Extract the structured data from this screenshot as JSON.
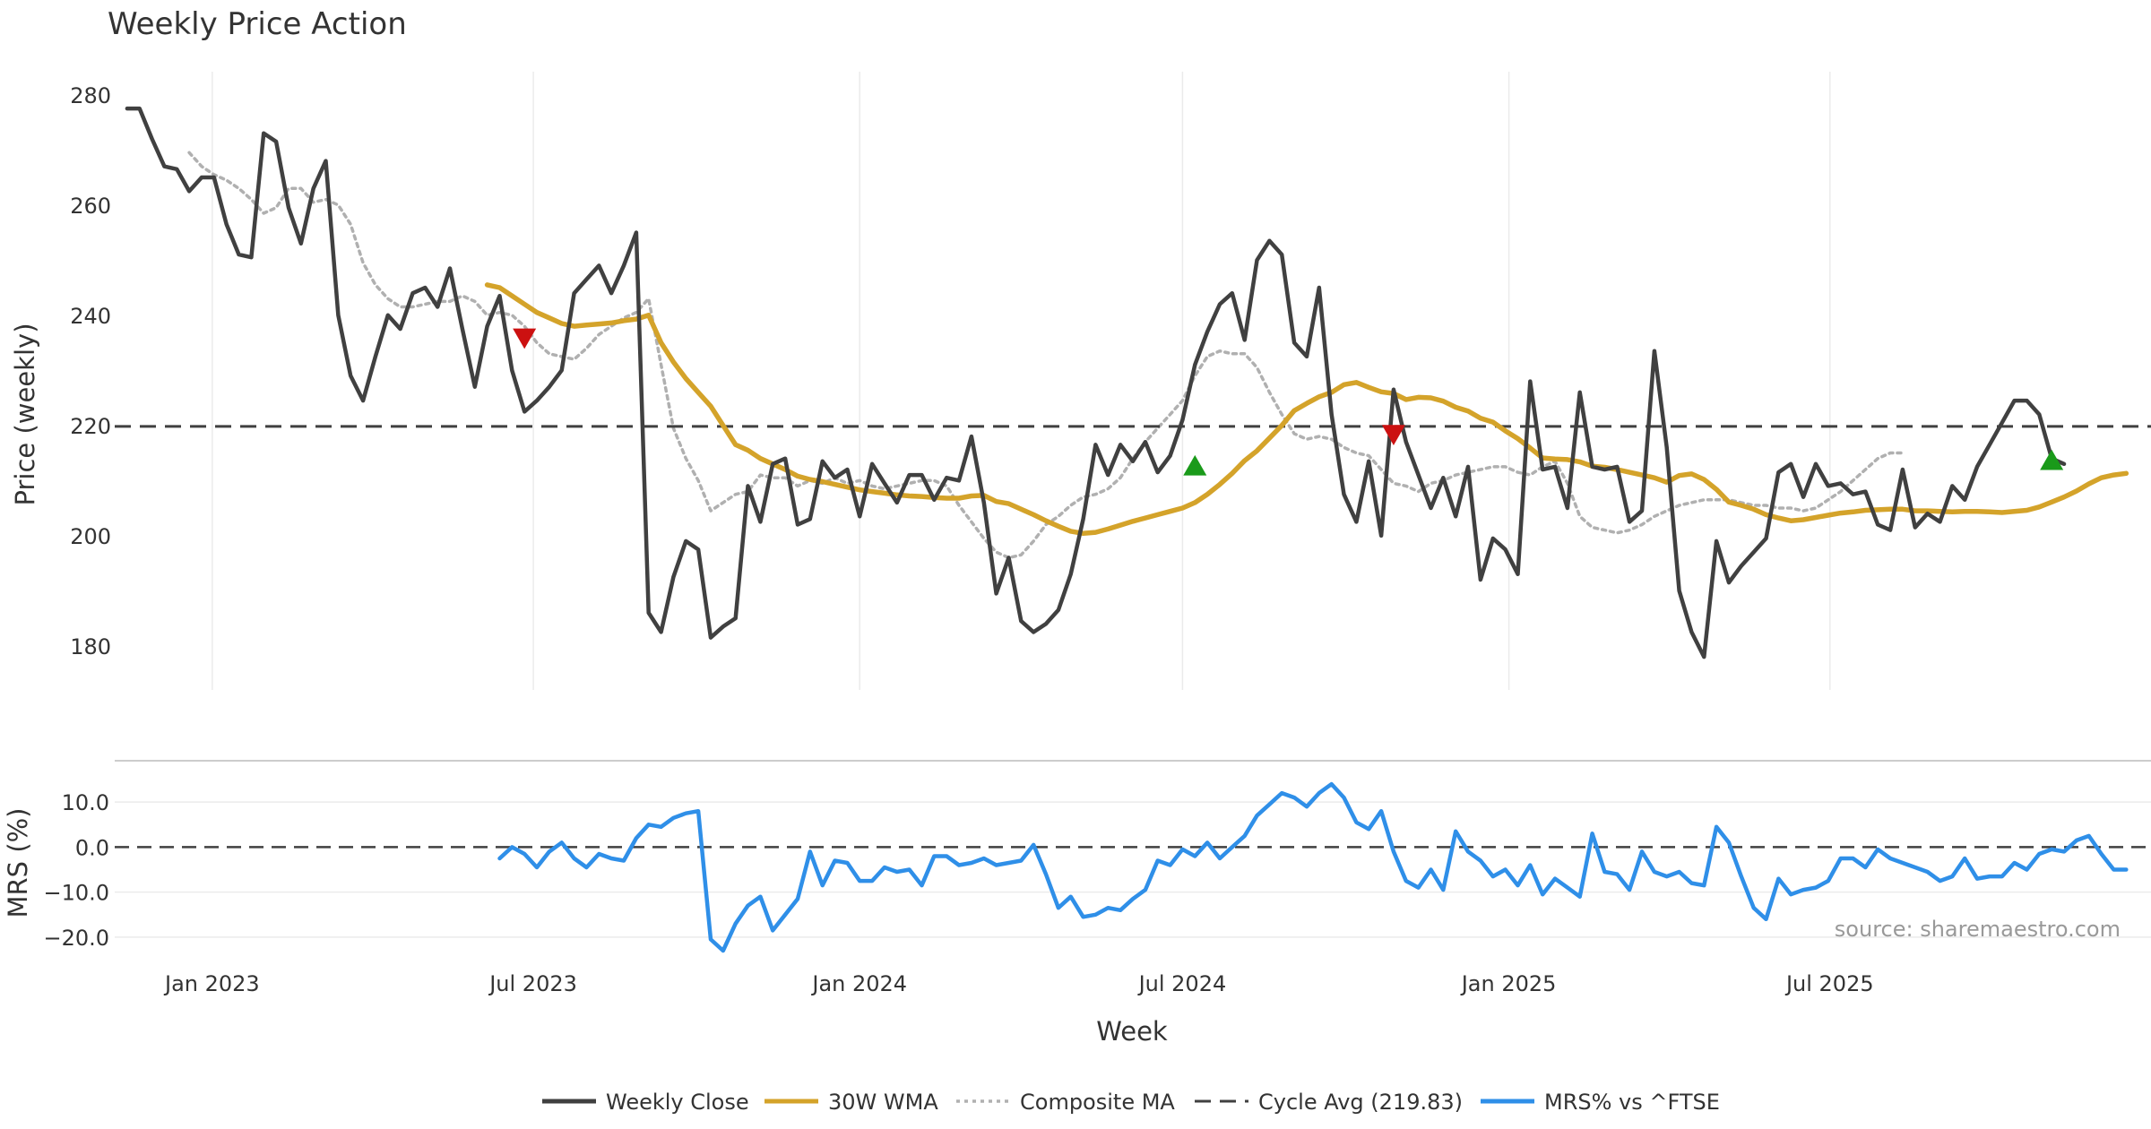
{
  "chart_data": {
    "type": "line",
    "title": "Weekly Price Action",
    "xlabel": "Week",
    "source": "source: sharemaestro.com",
    "x_range": [
      "2022-11-07",
      "2025-12-29"
    ],
    "x_ticks": [
      {
        "date": "2023-01-01",
        "label": "Jan 2023"
      },
      {
        "date": "2023-07-01",
        "label": "Jul 2023"
      },
      {
        "date": "2024-01-01",
        "label": "Jan 2024"
      },
      {
        "date": "2024-07-01",
        "label": "Jul 2024"
      },
      {
        "date": "2025-01-01",
        "label": "Jan 2025"
      },
      {
        "date": "2025-07-01",
        "label": "Jul 2025"
      }
    ],
    "price_panel": {
      "ylabel": "Price (weekly)",
      "ylim": [
        172,
        285
      ],
      "y_ticks": [
        180,
        200,
        220,
        240,
        260,
        280
      ],
      "grid": true
    },
    "mrs_panel": {
      "ylabel": "MRS (%)",
      "ylim": [
        -24,
        17
      ],
      "y_ticks": [
        10,
        0,
        -10,
        -20
      ],
      "y_tick_labels": [
        "10.0",
        "0.0",
        "−10.0",
        "−20.0"
      ],
      "zero_line": true
    },
    "start_date": "2022-11-14",
    "interval_days": 7,
    "series": [
      {
        "name": "Weekly Close",
        "color": "#404040",
        "style": "solid",
        "start_index": 0,
        "values": [
          277.5,
          277.5,
          272,
          267,
          266.5,
          262.5,
          265,
          265,
          256.5,
          251,
          250.5,
          273,
          271.5,
          259.5,
          253,
          263,
          268,
          240,
          229,
          224.5,
          232.5,
          240,
          237.5,
          244,
          245,
          241.5,
          248.5,
          237.5,
          227,
          238,
          243.5,
          230,
          222.5,
          224.5,
          227,
          230,
          244,
          246.5,
          249,
          244,
          249,
          255,
          186,
          182.5,
          192.5,
          199,
          197.5,
          181.5,
          183.5,
          185,
          209,
          202.5,
          213,
          214,
          202,
          203,
          213.5,
          210.5,
          212,
          203.5,
          213,
          209.5,
          206,
          211,
          211,
          206.5,
          210.5,
          210,
          218,
          206,
          189.5,
          196,
          184.5,
          182.5,
          184,
          186.5,
          193,
          203,
          216.5,
          211,
          216.5,
          213.5,
          217,
          211.5,
          214.5,
          221,
          231,
          237,
          242,
          244,
          235.5,
          250,
          253.5,
          251,
          235,
          232.5,
          245,
          222,
          207.5,
          202.5,
          213.5,
          200,
          226.5,
          217,
          211,
          205,
          210.5,
          203.5,
          212.5,
          192,
          199.5,
          197.5,
          193,
          228,
          212,
          212.5,
          205,
          226,
          212.5,
          212,
          212.5,
          202.5,
          204.5,
          233.5,
          216,
          190,
          182.5,
          178,
          199,
          191.5,
          194.5,
          197,
          199.5,
          211.5,
          213,
          207,
          213,
          209,
          209.5,
          207.5,
          208,
          202,
          201,
          212,
          201.5,
          204,
          202.5,
          209,
          206.5,
          212.5,
          216.5,
          220.5,
          224.5,
          224.5,
          222,
          214,
          213
        ]
      },
      {
        "name": "30W WMA",
        "color": "#d4a32a",
        "style": "solid",
        "start_index": 29,
        "values": [
          245.5,
          245,
          243.5,
          242,
          240.5,
          239.5,
          238.5,
          238,
          238.2,
          238.4,
          238.6,
          239,
          239.3,
          240,
          235,
          231.5,
          228.5,
          226,
          223.5,
          220,
          216.5,
          215.5,
          214,
          213,
          212,
          210.8,
          210.2,
          209.8,
          209.3,
          208.8,
          208.3,
          208,
          207.7,
          207.4,
          207.2,
          207.1,
          206.9,
          206.8,
          206.8,
          207.2,
          207.3,
          206.2,
          205.8,
          204.8,
          203.8,
          202.7,
          201.7,
          200.8,
          200.4,
          200.6,
          201.2,
          201.9,
          202.6,
          203.2,
          203.8,
          204.4,
          205,
          206,
          207.5,
          209.3,
          211.3,
          213.6,
          215.4,
          217.7,
          220,
          222.7,
          224,
          225.2,
          226,
          227.4,
          227.8,
          226.9,
          226.1,
          225.8,
          224.7,
          225.1,
          225,
          224.4,
          223.3,
          222.6,
          221.3,
          220.6,
          219,
          217.6,
          215.9,
          214.1,
          213.9,
          213.8,
          213.4,
          212.6,
          212.4,
          212,
          211.5,
          211,
          210.5,
          209.7,
          210.9,
          211.2,
          210.2,
          208.4,
          206.1,
          205.5,
          204.8,
          203.8,
          203.2,
          202.7,
          202.9,
          203.3,
          203.7,
          204.1,
          204.3,
          204.6,
          204.7,
          204.8,
          204.8,
          204.5,
          204.5,
          204.4,
          204.3,
          204.4,
          204.4,
          204.3,
          204.2,
          204.4,
          204.6,
          205.2,
          206.1,
          207,
          208.1,
          209.4,
          210.5,
          211,
          211.3
        ]
      },
      {
        "name": "Composite MA",
        "color": "#b0b0b0",
        "style": "dotted",
        "start_index": 5,
        "values": [
          269.5,
          267,
          265.5,
          264.5,
          263,
          261,
          258.5,
          259.5,
          263,
          263,
          260.5,
          261,
          260,
          256.5,
          249.5,
          245.5,
          243,
          241.5,
          241.5,
          242,
          242.5,
          242.5,
          243.5,
          242.5,
          240,
          240.5,
          240,
          238,
          235,
          233,
          232.5,
          232,
          234,
          236.5,
          238,
          239.5,
          240.5,
          243,
          231,
          219.5,
          214,
          210,
          204.5,
          206,
          207.5,
          208,
          211,
          210.5,
          210.5,
          209,
          210,
          209.5,
          210.5,
          209.5,
          210,
          209,
          208.5,
          209,
          209.5,
          210,
          210,
          209,
          205.5,
          202.5,
          199.5,
          197,
          196,
          196.5,
          199,
          202,
          203.5,
          205.5,
          207,
          207.5,
          208.5,
          210.5,
          214,
          217,
          219.5,
          222,
          224.5,
          229,
          232.5,
          233.5,
          233,
          233,
          230.5,
          226,
          222,
          218.5,
          217.5,
          218,
          217.5,
          216,
          215,
          214.5,
          212,
          209.5,
          209,
          208,
          209.5,
          210,
          211,
          211.5,
          212,
          212.5,
          212.5,
          211.5,
          211,
          212.5,
          213.5,
          209.5,
          203.5,
          201.5,
          201,
          200.5,
          201,
          202,
          203.5,
          204.5,
          205.5,
          206,
          206.5,
          206.5,
          206.5,
          206,
          205.5,
          205.5,
          205,
          205,
          204.5,
          205,
          206.5,
          208,
          210,
          212,
          214,
          215,
          215
        ]
      },
      {
        "name": "Cycle Avg (219.83)",
        "color": "#404040",
        "style": "dashed",
        "constant": 219.83
      },
      {
        "name": "MRS% vs ^FTSE",
        "color": "#2f8fe8",
        "style": "solid",
        "panel": "mrs",
        "start_index": 30,
        "values": [
          -2.5,
          0,
          -1.5,
          -4.5,
          -1,
          1,
          -2.5,
          -4.5,
          -1.5,
          -2.5,
          -3,
          2,
          5,
          4.5,
          6.5,
          7.5,
          8,
          -20.5,
          -23,
          -17,
          -13,
          -11,
          -18.5,
          -15,
          -11.5,
          -1,
          -8.5,
          -3,
          -3.5,
          -7.5,
          -7.5,
          -4.5,
          -5.5,
          -5,
          -8.5,
          -2,
          -2,
          -4,
          -3.5,
          -2.5,
          -4,
          -3.5,
          -3,
          0.5,
          -6,
          -13.5,
          -11,
          -15.5,
          -15,
          -13.5,
          -14,
          -11.5,
          -9.5,
          -3,
          -4,
          -0.5,
          -2,
          1,
          -2.5,
          0,
          2.5,
          7,
          9.5,
          12,
          11,
          9,
          12,
          14,
          11,
          5.5,
          4,
          8,
          -1,
          -7.5,
          -9,
          -5,
          -9.5,
          3.5,
          -1,
          -3,
          -6.5,
          -5,
          -8.5,
          -4,
          -10.5,
          -7,
          -9,
          -11,
          3,
          -5.5,
          -6,
          -9.5,
          -1,
          -5.5,
          -6.5,
          -5.5,
          -8,
          -8.5,
          4.5,
          1,
          -6.5,
          -13.5,
          -16,
          -7,
          -10.5,
          -9.5,
          -9,
          -7.5,
          -2.5,
          -2.5,
          -4.5,
          -0.5,
          -2.5,
          -3.5,
          -4.5,
          -5.5,
          -7.5,
          -6.5,
          -2.5,
          -7,
          -6.5,
          -6.5,
          -3.5,
          -5,
          -1.5,
          -0.5,
          -1,
          1.5,
          2.5,
          -1.5,
          -5,
          -5
        ]
      }
    ],
    "signals": [
      {
        "type": "sell",
        "index": 32,
        "value": 236,
        "color": "#cc1111"
      },
      {
        "type": "buy",
        "index": 86,
        "value": 212.5,
        "color": "#1a9a1a"
      },
      {
        "type": "sell",
        "index": 102,
        "value": 218.5,
        "color": "#cc1111"
      },
      {
        "type": "buy",
        "index": 155,
        "value": 213.5,
        "color": "#1a9a1a"
      }
    ],
    "legend": {
      "placement": "bottom-center",
      "entries": [
        "Weekly Close",
        "30W WMA",
        "Composite MA",
        "Cycle Avg (219.83)",
        "MRS% vs ^FTSE"
      ]
    }
  }
}
